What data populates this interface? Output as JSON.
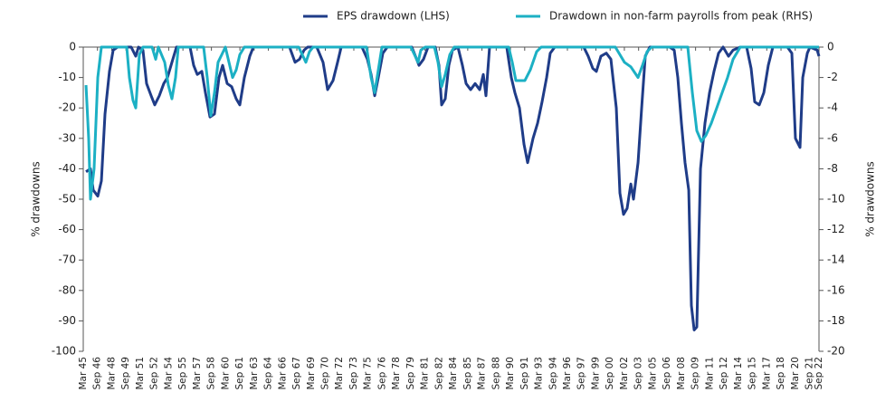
{
  "chart_data": {
    "type": "line",
    "y_label": "% drawdowns",
    "y2_label": "% drawdowns",
    "xlim": [
      1945.25,
      2022.75
    ],
    "ylim": [
      -100,
      0
    ],
    "yticks": [
      0,
      -10,
      -20,
      -30,
      -40,
      -50,
      -60,
      -70,
      -80,
      -90,
      -100
    ],
    "y2lim": [
      -20,
      0
    ],
    "y2ticks": [
      0,
      -2,
      -4,
      -6,
      -8,
      -10,
      -12,
      -14,
      -16,
      -18,
      -20
    ],
    "xticks": [
      {
        "value": 1945.25,
        "label": "Mar 45"
      },
      {
        "value": 1946.75,
        "label": "Sep 46"
      },
      {
        "value": 1948.25,
        "label": "Mar 48"
      },
      {
        "value": 1949.75,
        "label": "Sep 49"
      },
      {
        "value": 1951.25,
        "label": "Mar 51"
      },
      {
        "value": 1952.75,
        "label": "Sep 52"
      },
      {
        "value": 1954.25,
        "label": "Mar 54"
      },
      {
        "value": 1955.75,
        "label": "Sep 55"
      },
      {
        "value": 1957.25,
        "label": "Mar 57"
      },
      {
        "value": 1958.75,
        "label": "Sep 58"
      },
      {
        "value": 1960.25,
        "label": "Mar 60"
      },
      {
        "value": 1961.75,
        "label": "Sep 61"
      },
      {
        "value": 1963.25,
        "label": "Mar 63"
      },
      {
        "value": 1964.75,
        "label": "Sep 64"
      },
      {
        "value": 1966.25,
        "label": "Mar 66"
      },
      {
        "value": 1967.75,
        "label": "Sep 67"
      },
      {
        "value": 1969.25,
        "label": "Mar 69"
      },
      {
        "value": 1970.75,
        "label": "Sep 70"
      },
      {
        "value": 1972.25,
        "label": "Mar 72"
      },
      {
        "value": 1973.75,
        "label": "Sep 73"
      },
      {
        "value": 1975.25,
        "label": "Mar 75"
      },
      {
        "value": 1976.75,
        "label": "Sep 76"
      },
      {
        "value": 1978.25,
        "label": "Mar 78"
      },
      {
        "value": 1979.75,
        "label": "Sep 79"
      },
      {
        "value": 1981.25,
        "label": "Mar 81"
      },
      {
        "value": 1982.75,
        "label": "Sep 82"
      },
      {
        "value": 1984.25,
        "label": "Mar 84"
      },
      {
        "value": 1985.75,
        "label": "Sep 85"
      },
      {
        "value": 1987.25,
        "label": "Mar 87"
      },
      {
        "value": 1988.75,
        "label": "Sep 88"
      },
      {
        "value": 1990.25,
        "label": "Mar 90"
      },
      {
        "value": 1991.75,
        "label": "Sep 91"
      },
      {
        "value": 1993.25,
        "label": "Mar 93"
      },
      {
        "value": 1994.75,
        "label": "Sep 94"
      },
      {
        "value": 1996.25,
        "label": "Mar 96"
      },
      {
        "value": 1997.75,
        "label": "Sep 97"
      },
      {
        "value": 1999.25,
        "label": "Mar 99"
      },
      {
        "value": 2000.75,
        "label": "Sep 00"
      },
      {
        "value": 2002.25,
        "label": "Mar 02"
      },
      {
        "value": 2003.75,
        "label": "Sep 03"
      },
      {
        "value": 2005.25,
        "label": "Mar 05"
      },
      {
        "value": 2006.75,
        "label": "Sep 06"
      },
      {
        "value": 2008.25,
        "label": "Mar 08"
      },
      {
        "value": 2009.75,
        "label": "Sep 09"
      },
      {
        "value": 2011.25,
        "label": "Mar 11"
      },
      {
        "value": 2012.75,
        "label": "Sep 12"
      },
      {
        "value": 2014.25,
        "label": "Mar 14"
      },
      {
        "value": 2015.75,
        "label": "Sep 15"
      },
      {
        "value": 2017.25,
        "label": "Mar 17"
      },
      {
        "value": 2018.75,
        "label": "Sep 18"
      },
      {
        "value": 2020.25,
        "label": "Mar 20"
      },
      {
        "value": 2021.75,
        "label": "Sep 21"
      },
      {
        "value": 2022.75,
        "label": "Sep 22"
      }
    ],
    "series": [
      {
        "name": "EPS drawdown (LHS)",
        "color": "#1f3c88",
        "axis": "y",
        "x": [
          1945.54,
          1946.01,
          1946.3,
          1946.78,
          1947.16,
          1947.54,
          1948.01,
          1948.4,
          1948.87,
          1950.3,
          1950.78,
          1951.07,
          1951.54,
          1951.92,
          1952.4,
          1952.78,
          1953.26,
          1953.73,
          1954.12,
          1954.59,
          1955.07,
          1956.5,
          1956.88,
          1957.26,
          1957.74,
          1958.12,
          1958.6,
          1959.07,
          1959.55,
          1959.93,
          1960.41,
          1960.88,
          1961.36,
          1961.74,
          1962.22,
          1962.79,
          1963.17,
          1966.98,
          1967.56,
          1968.03,
          1968.51,
          1968.89,
          1969.85,
          1970.51,
          1970.99,
          1971.56,
          1972.04,
          1972.42,
          1974.61,
          1975.18,
          1975.57,
          1975.95,
          1976.33,
          1976.81,
          1977.28,
          1979.86,
          1980.24,
          1980.62,
          1981.09,
          1981.57,
          1982.33,
          1982.72,
          1983.0,
          1983.38,
          1983.76,
          1984.14,
          1984.72,
          1985.19,
          1985.58,
          1986.05,
          1986.53,
          1987.01,
          1987.39,
          1987.67,
          1988.05,
          1989.86,
          1990.34,
          1990.72,
          1991.2,
          1991.68,
          1992.06,
          1992.63,
          1993.11,
          1993.58,
          1994.06,
          1994.44,
          1994.92,
          1997.97,
          1998.44,
          1998.92,
          1999.3,
          1999.78,
          2000.35,
          2000.83,
          2001.4,
          2001.78,
          2002.16,
          2002.54,
          2002.93,
          2003.21,
          2003.69,
          2004.07,
          2004.45,
          2004.93,
          2007.02,
          2007.5,
          2007.88,
          2008.26,
          2008.64,
          2009.03,
          2009.31,
          2009.6,
          2009.88,
          2010.27,
          2010.74,
          2011.22,
          2011.69,
          2012.17,
          2012.65,
          2013.22,
          2013.7,
          2014.46,
          2015.13,
          2015.6,
          2015.98,
          2016.46,
          2016.94,
          2017.41,
          2017.89,
          2019.42,
          2019.89,
          2020.27,
          2020.75,
          2021.04,
          2021.52,
          2021.8,
          2022.56,
          2022.75
        ],
        "values": [
          -41,
          -40,
          -47,
          -49,
          -44,
          -22,
          -8,
          -1,
          0,
          0,
          -3,
          0,
          -1,
          -12,
          -16,
          -19,
          -16,
          -12,
          -10,
          -5,
          0,
          0,
          -6,
          -9,
          -8,
          -15,
          -23,
          -22,
          -10,
          -6,
          -12,
          -13,
          -17,
          -19,
          -10,
          -3,
          0,
          0,
          -5,
          -4,
          -1,
          0,
          0,
          -5,
          -14,
          -11,
          -5,
          0,
          0,
          -4,
          -9,
          -16,
          -10,
          -2,
          0,
          0,
          -3,
          -6,
          -4,
          0,
          0,
          -6,
          -19,
          -17,
          -6,
          -1,
          0,
          -6,
          -12,
          -14,
          -12,
          -14,
          -9,
          -16,
          0,
          0,
          -10,
          -15,
          -20,
          -32,
          -38,
          -30,
          -25,
          -18,
          -10,
          -2,
          0,
          0,
          -3,
          -7,
          -8,
          -3,
          -2,
          -4,
          -20,
          -48,
          -55,
          -53,
          -45,
          -50,
          -38,
          -20,
          -3,
          0,
          0,
          -1,
          -10,
          -25,
          -38,
          -47,
          -85,
          -93,
          -92,
          -40,
          -25,
          -15,
          -8,
          -2,
          0,
          -3,
          -1,
          0,
          0,
          -7,
          -18,
          -19,
          -15,
          -6,
          0,
          0,
          -2,
          -30,
          -33,
          -10,
          -2,
          0,
          -1,
          -3
        ]
      },
      {
        "name": "Drawdown in non-farm payrolls from peak (RHS)",
        "color": "#1cb0c4",
        "axis": "y2",
        "x": [
          1945.54,
          1945.82,
          1946.01,
          1946.39,
          1946.78,
          1947.16,
          1949.83,
          1950.11,
          1950.49,
          1950.78,
          1951.16,
          1951.54,
          1952.5,
          1952.88,
          1953.16,
          1953.83,
          1954.21,
          1954.59,
          1954.97,
          1955.26,
          1957.93,
          1958.31,
          1958.69,
          1959.07,
          1959.45,
          1959.84,
          1960.22,
          1960.6,
          1960.98,
          1961.36,
          1961.74,
          1962.22,
          1967.94,
          1968.32,
          1968.7,
          1969.08,
          1969.46,
          1975.09,
          1975.57,
          1975.95,
          1976.33,
          1976.71,
          1979.76,
          1980.14,
          1980.52,
          1980.81,
          1981.28,
          1982.24,
          1982.62,
          1983.0,
          1983.38,
          1983.86,
          1984.33,
          1990.06,
          1990.44,
          1990.82,
          1991.2,
          1991.77,
          1992.34,
          1993.01,
          1993.49,
          2001.3,
          2001.78,
          2002.26,
          2002.93,
          2003.69,
          2004.16,
          2004.64,
          2005.12,
          2008.93,
          2009.41,
          2009.88,
          2010.36,
          2010.84,
          2011.41,
          2011.98,
          2012.55,
          2013.12,
          2013.7,
          2014.46,
          2022.28,
          2022.75
        ],
        "values": [
          -2.5,
          -6,
          -10,
          -8,
          -2,
          0,
          0,
          -2,
          -3.5,
          -4,
          -0.5,
          0,
          0,
          -0.8,
          0,
          -1,
          -2.5,
          -3.4,
          -2,
          0,
          0,
          -2,
          -4.5,
          -3,
          -1,
          -0.5,
          0,
          -1,
          -2,
          -1.5,
          -0.5,
          0,
          0,
          -0.5,
          -1,
          -0.3,
          0,
          0,
          -2,
          -3,
          -1.5,
          0,
          0,
          -0.5,
          -1,
          -0.2,
          0,
          0,
          -1,
          -2.6,
          -1.8,
          -0.5,
          0,
          0,
          -1,
          -2.2,
          -2.2,
          -2.2,
          -1.5,
          -0.3,
          0,
          0,
          -0.5,
          -1,
          -1.3,
          -2,
          -1.2,
          -0.3,
          0,
          0,
          -3,
          -5.5,
          -6.2,
          -5.8,
          -5,
          -4,
          -3,
          -2,
          -0.8,
          0,
          0,
          0
        ]
      }
    ]
  }
}
